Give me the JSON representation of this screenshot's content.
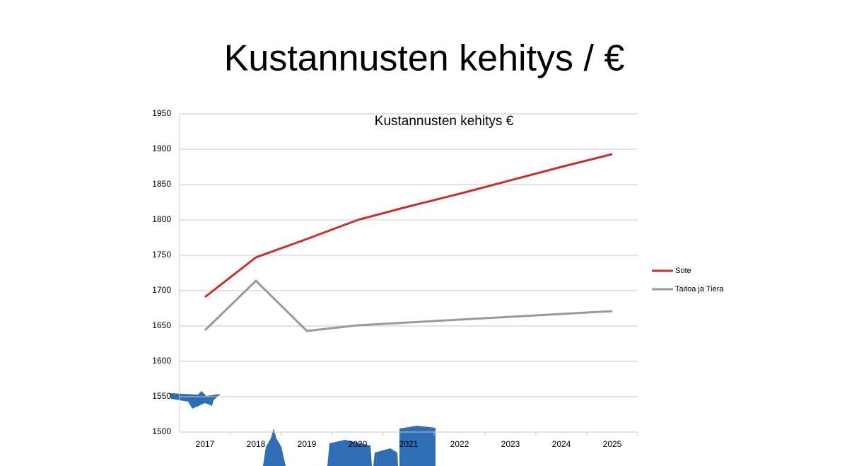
{
  "slide_title": "Kustannusten kehitys / €",
  "chart_data": {
    "type": "line",
    "title": "Kustannusten kehitys €",
    "categories": [
      "2017",
      "2018",
      "2019",
      "2020",
      "2021",
      "2022",
      "2023",
      "2024",
      "2025"
    ],
    "series": [
      {
        "name": "Sote",
        "color": "#c9302c",
        "values": [
          1691,
          1747,
          1773,
          1800,
          1819,
          1837,
          1856,
          1875,
          1893
        ]
      },
      {
        "name": "Taitoa ja Tiera",
        "color": "#9a9a9a",
        "values": [
          1644,
          1714,
          1643,
          1651,
          1655,
          1659,
          1663,
          1667,
          1671
        ]
      }
    ],
    "ylim": [
      1500,
      1950
    ],
    "yticks": [
      1500,
      1550,
      1600,
      1650,
      1700,
      1750,
      1800,
      1850,
      1900,
      1950
    ],
    "grid": true,
    "legend": "right"
  }
}
